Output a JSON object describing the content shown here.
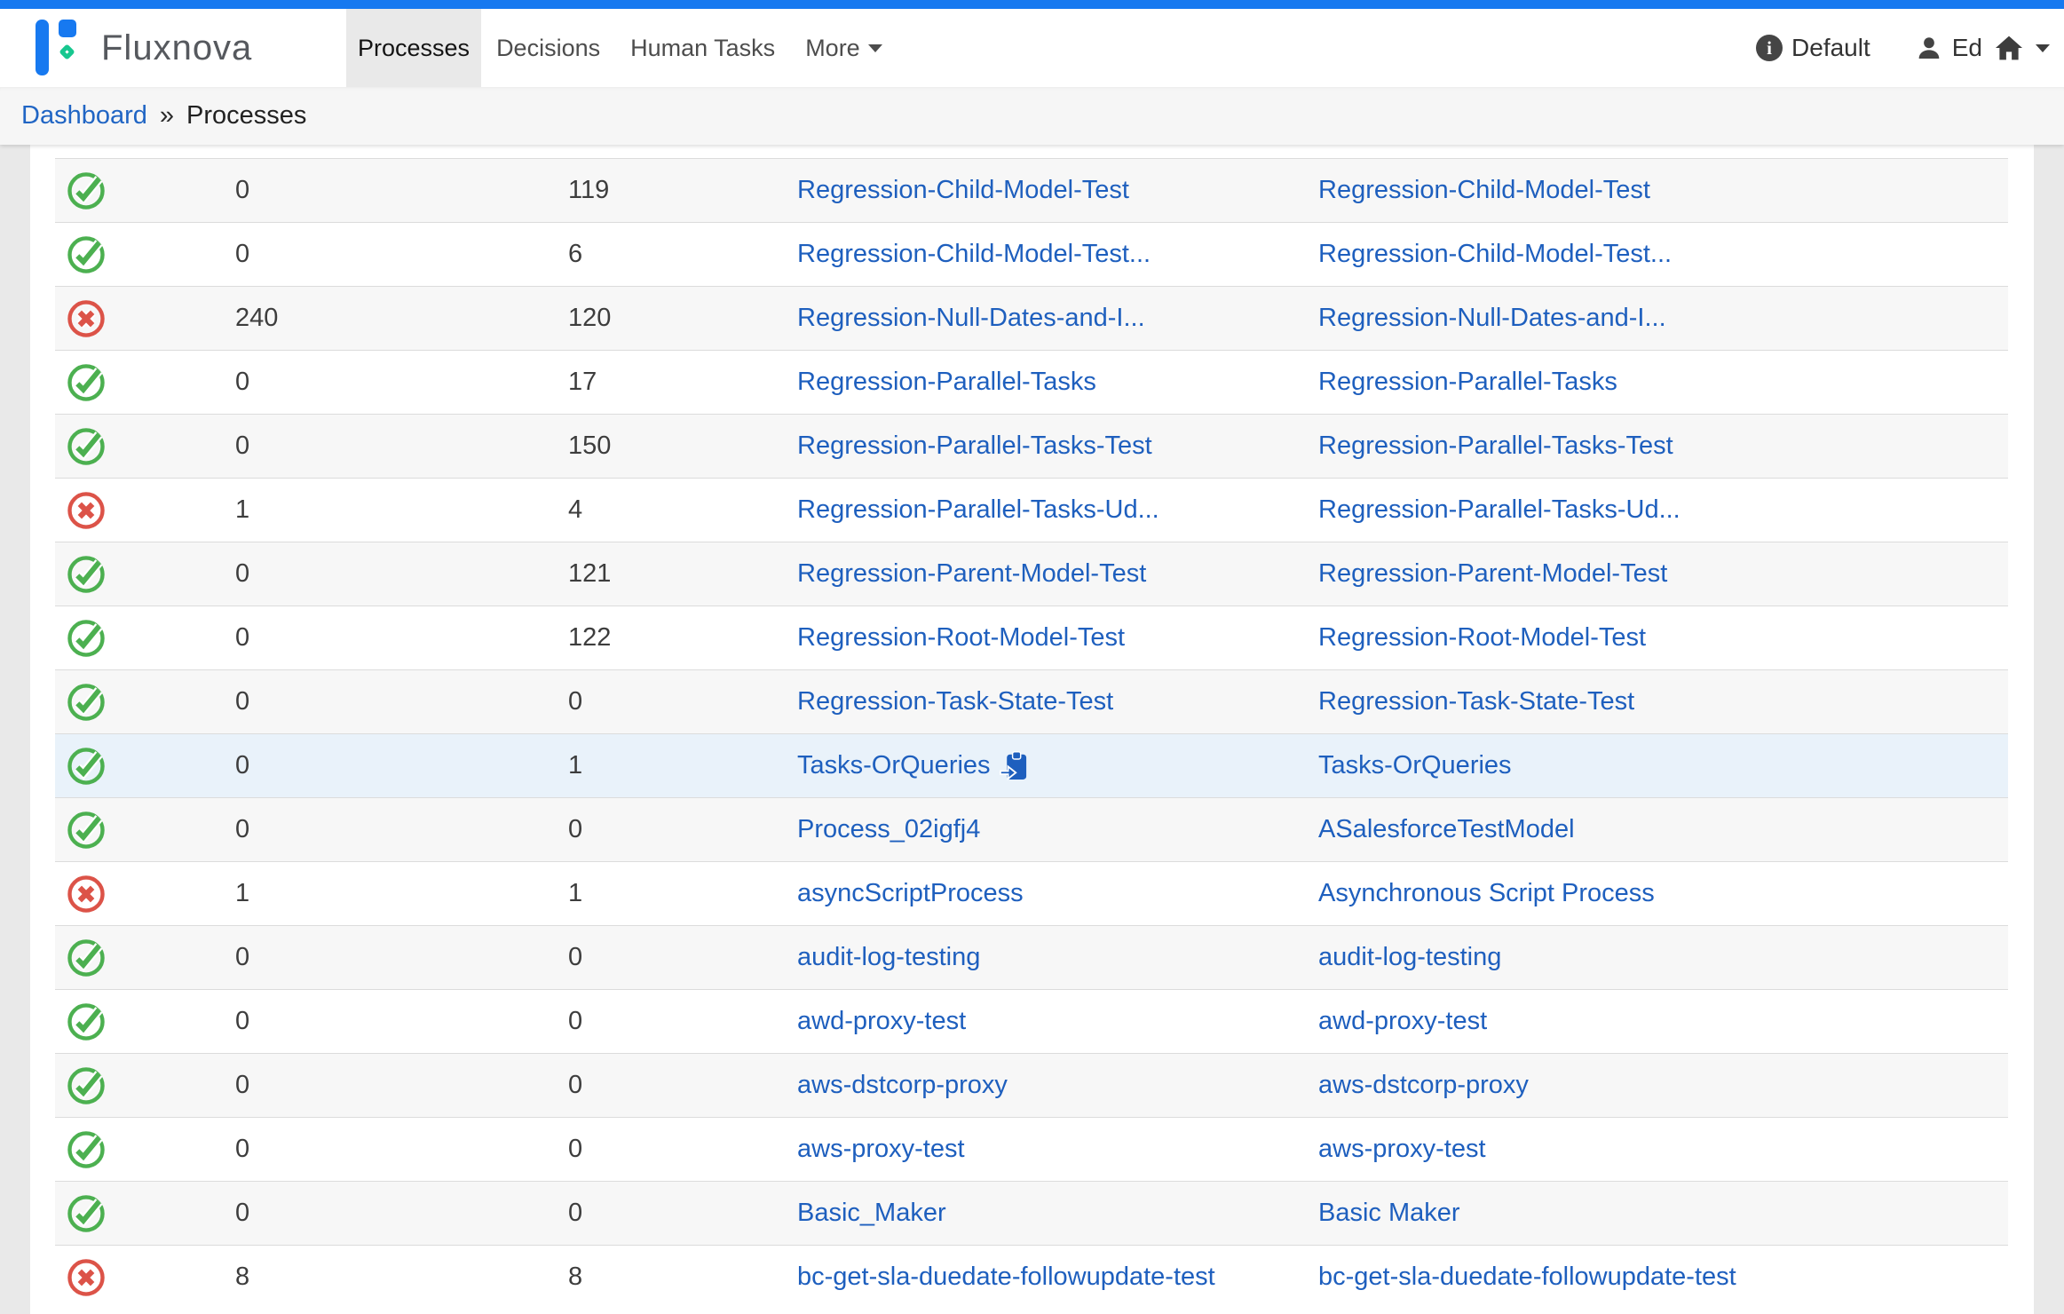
{
  "brand": {
    "name": "Fluxnova"
  },
  "nav": {
    "items": [
      {
        "label": "Processes",
        "active": true
      },
      {
        "label": "Decisions",
        "active": false
      },
      {
        "label": "Human Tasks",
        "active": false
      },
      {
        "label": "More",
        "active": false,
        "has_caret": true
      }
    ]
  },
  "header_right": {
    "tenant": "Default",
    "user": "Ed"
  },
  "breadcrumb": {
    "link": "Dashboard",
    "separator": "»",
    "current": "Processes"
  },
  "colors": {
    "accent_blue": "#1779f0",
    "logo_green": "#17c78f",
    "link_blue": "#1e5fbe",
    "success_green": "#4cb050",
    "error_red": "#dc5348",
    "row_stripe": "#f7f7f7",
    "row_highlight": "#e9f2fa"
  },
  "table": {
    "rows": [
      {
        "status": "success",
        "incidents": "0",
        "instances": "119",
        "key": "Regression-Child-Model-Test",
        "name": "Regression-Child-Model-Test",
        "highlighted": false,
        "key_icon": false
      },
      {
        "status": "success",
        "incidents": "0",
        "instances": "6",
        "key": "Regression-Child-Model-Test...",
        "name": "Regression-Child-Model-Test...",
        "highlighted": false,
        "key_icon": false
      },
      {
        "status": "error",
        "incidents": "240",
        "instances": "120",
        "key": "Regression-Null-Dates-and-I...",
        "name": "Regression-Null-Dates-and-I...",
        "highlighted": false,
        "key_icon": false
      },
      {
        "status": "success",
        "incidents": "0",
        "instances": "17",
        "key": "Regression-Parallel-Tasks",
        "name": "Regression-Parallel-Tasks",
        "highlighted": false,
        "key_icon": false
      },
      {
        "status": "success",
        "incidents": "0",
        "instances": "150",
        "key": "Regression-Parallel-Tasks-Test",
        "name": "Regression-Parallel-Tasks-Test",
        "highlighted": false,
        "key_icon": false
      },
      {
        "status": "error",
        "incidents": "1",
        "instances": "4",
        "key": "Regression-Parallel-Tasks-Ud...",
        "name": "Regression-Parallel-Tasks-Ud...",
        "highlighted": false,
        "key_icon": false
      },
      {
        "status": "success",
        "incidents": "0",
        "instances": "121",
        "key": "Regression-Parent-Model-Test",
        "name": "Regression-Parent-Model-Test",
        "highlighted": false,
        "key_icon": false
      },
      {
        "status": "success",
        "incidents": "0",
        "instances": "122",
        "key": "Regression-Root-Model-Test",
        "name": "Regression-Root-Model-Test",
        "highlighted": false,
        "key_icon": false
      },
      {
        "status": "success",
        "incidents": "0",
        "instances": "0",
        "key": "Regression-Task-State-Test",
        "name": "Regression-Task-State-Test",
        "highlighted": false,
        "key_icon": false
      },
      {
        "status": "success",
        "incidents": "0",
        "instances": "1",
        "key": "Tasks-OrQueries",
        "name": "Tasks-OrQueries",
        "highlighted": true,
        "key_icon": true
      },
      {
        "status": "success",
        "incidents": "0",
        "instances": "0",
        "key": "Process_02igfj4",
        "name": "ASalesforceTestModel",
        "highlighted": false,
        "key_icon": false
      },
      {
        "status": "error",
        "incidents": "1",
        "instances": "1",
        "key": "asyncScriptProcess",
        "name": "Asynchronous Script Process",
        "highlighted": false,
        "key_icon": false
      },
      {
        "status": "success",
        "incidents": "0",
        "instances": "0",
        "key": "audit-log-testing",
        "name": "audit-log-testing",
        "highlighted": false,
        "key_icon": false
      },
      {
        "status": "success",
        "incidents": "0",
        "instances": "0",
        "key": "awd-proxy-test",
        "name": "awd-proxy-test",
        "highlighted": false,
        "key_icon": false
      },
      {
        "status": "success",
        "incidents": "0",
        "instances": "0",
        "key": "aws-dstcorp-proxy",
        "name": "aws-dstcorp-proxy",
        "highlighted": false,
        "key_icon": false
      },
      {
        "status": "success",
        "incidents": "0",
        "instances": "0",
        "key": "aws-proxy-test",
        "name": "aws-proxy-test",
        "highlighted": false,
        "key_icon": false
      },
      {
        "status": "success",
        "incidents": "0",
        "instances": "0",
        "key": "Basic_Maker",
        "name": "Basic Maker",
        "highlighted": false,
        "key_icon": false
      },
      {
        "status": "error",
        "incidents": "8",
        "instances": "8",
        "key": "bc-get-sla-duedate-followupdate-test",
        "name": "bc-get-sla-duedate-followupdate-test",
        "highlighted": false,
        "key_icon": false
      }
    ]
  }
}
